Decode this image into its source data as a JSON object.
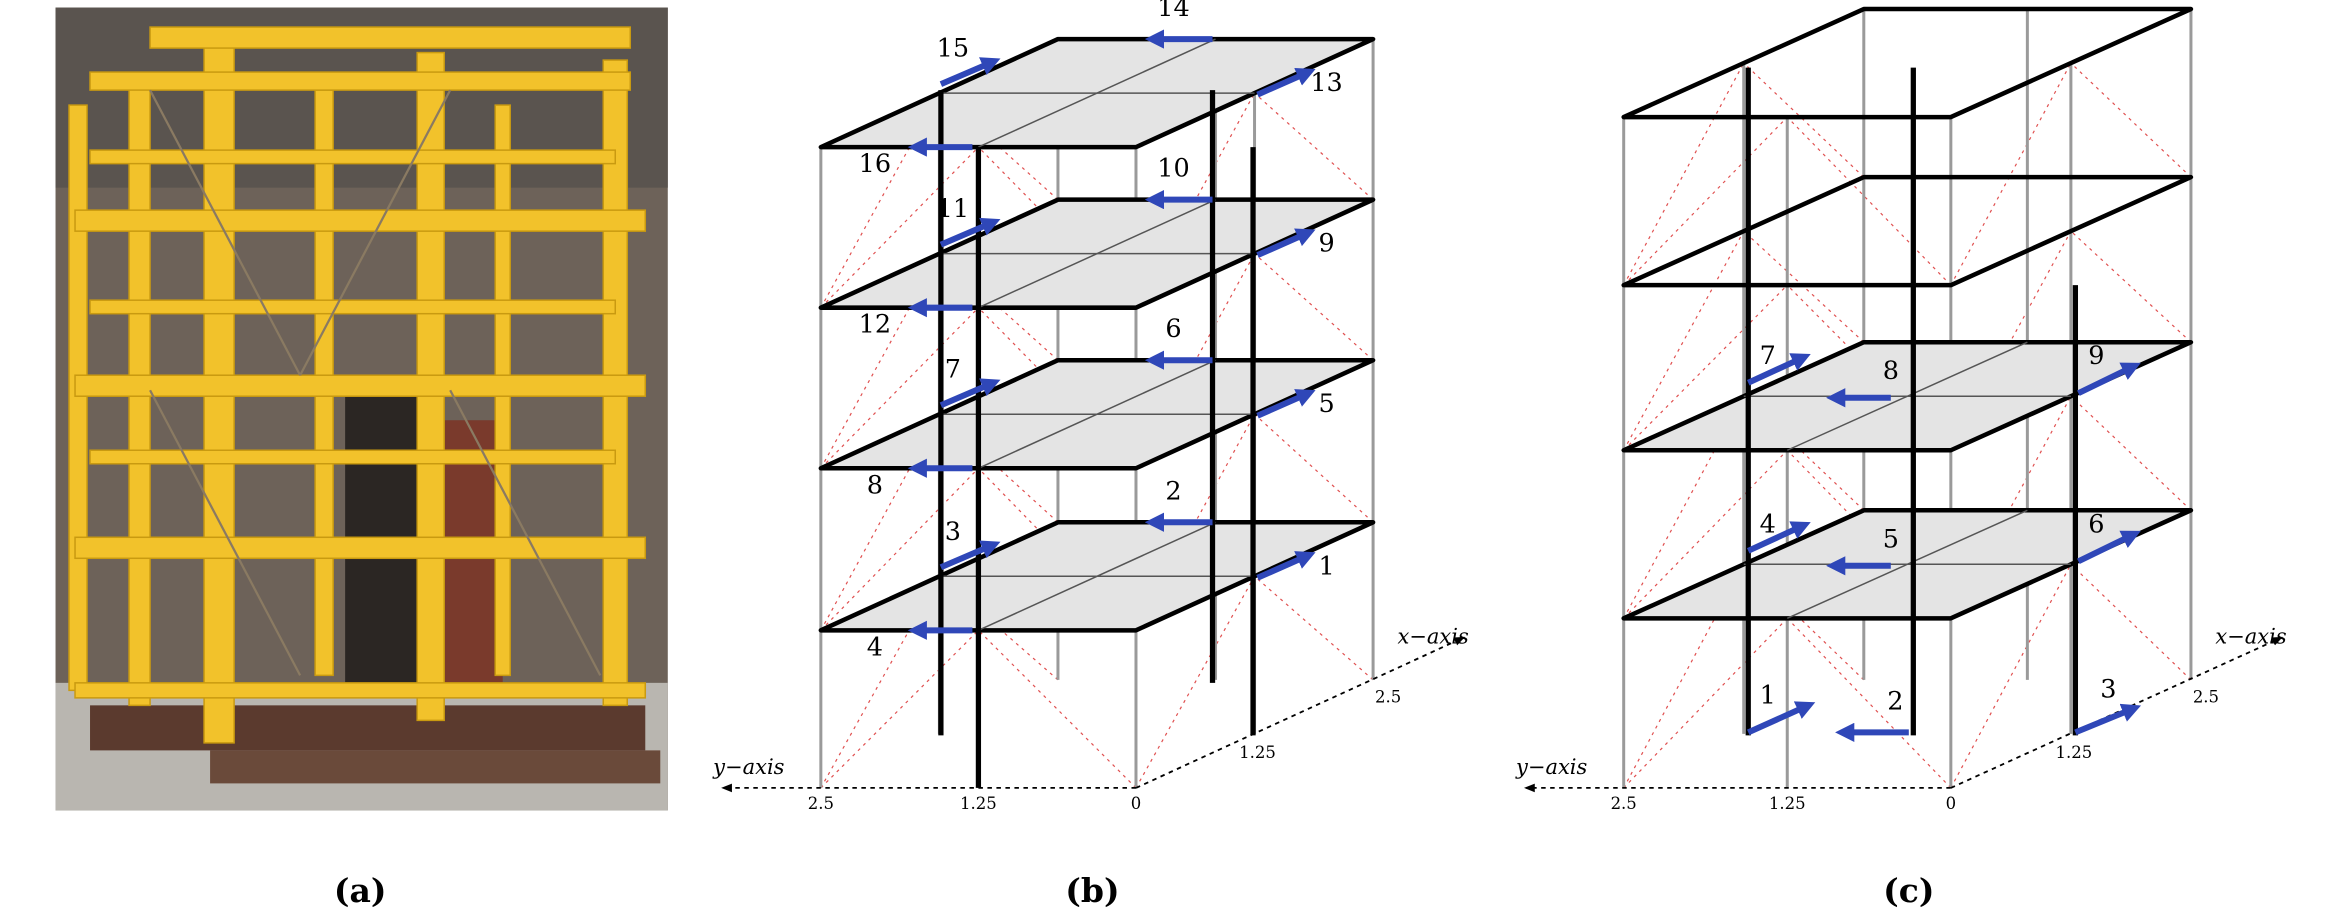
{
  "panels": [
    {
      "label": "(a)"
    },
    {
      "label": "(b)",
      "arrow_labels": [
        "1",
        "2",
        "3",
        "4",
        "5",
        "6",
        "7",
        "8",
        "9",
        "10",
        "11",
        "12",
        "13",
        "14",
        "15",
        "16"
      ],
      "x_axis_label": "x−axis",
      "y_axis_label": "y−axis",
      "y_ticks": [
        "2.5",
        "1.25",
        "0"
      ],
      "x_ticks": [
        "1.25",
        "2.5"
      ]
    },
    {
      "label": "(c)",
      "arrow_labels": [
        "1",
        "2",
        "3",
        "4",
        "5",
        "6",
        "7",
        "8",
        "9"
      ],
      "x_axis_label": "x−axis",
      "y_axis_label": "y−axis",
      "y_ticks": [
        "2.5",
        "1.25",
        "0"
      ],
      "x_ticks": [
        "1.25",
        "2.5"
      ]
    }
  ]
}
